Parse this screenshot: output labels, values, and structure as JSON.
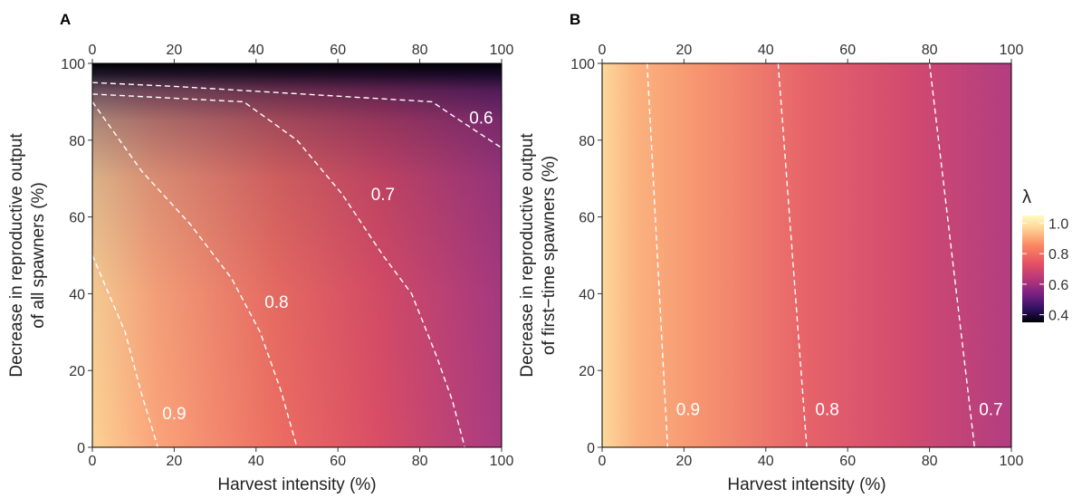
{
  "chart_data": [
    {
      "type": "heatmap",
      "panel_label": "A",
      "xlabel": "Harvest intensity (%)",
      "ylabel_lines": [
        "Decrease in reproductive output",
        "of all spawners (%)"
      ],
      "xlim": [
        0,
        100
      ],
      "ylim": [
        0,
        100
      ],
      "x_ticks": [
        0,
        20,
        40,
        60,
        80,
        100
      ],
      "y_ticks": [
        0,
        20,
        40,
        60,
        80,
        100
      ],
      "top_axis_ticks": [
        0,
        20,
        40,
        60,
        80,
        100
      ],
      "contours": [
        {
          "level": "0.9",
          "points": [
            [
              0,
              50
            ],
            [
              4,
              40
            ],
            [
              8,
              30
            ],
            [
              12,
              14
            ],
            [
              16,
              0
            ]
          ],
          "label_at": [
            20,
            9
          ]
        },
        {
          "level": "0.8",
          "points": [
            [
              0,
              90
            ],
            [
              12,
              72
            ],
            [
              24,
              58
            ],
            [
              34,
              44
            ],
            [
              41,
              30
            ],
            [
              46,
              15
            ],
            [
              50,
              0
            ]
          ],
          "label_at": [
            45,
            38
          ]
        },
        {
          "level": "0.7",
          "points": [
            [
              0,
              92
            ],
            [
              37,
              90
            ],
            [
              50,
              80
            ],
            [
              61,
              66
            ],
            [
              71,
              50
            ],
            [
              78,
              40
            ],
            [
              84,
              24
            ],
            [
              88,
              12
            ],
            [
              91,
              0
            ]
          ],
          "label_at": [
            71,
            66
          ]
        },
        {
          "level": "0.6",
          "points": [
            [
              0,
              95
            ],
            [
              20,
              94
            ],
            [
              83,
              90
            ],
            [
              90,
              85
            ],
            [
              100,
              78
            ]
          ],
          "label_at": [
            95,
            86
          ]
        }
      ]
    },
    {
      "type": "heatmap",
      "panel_label": "B",
      "xlabel": "Harvest intensity (%)",
      "ylabel_lines": [
        "Decrease in reproductive output",
        "of first−time spawners (%)"
      ],
      "xlim": [
        0,
        100
      ],
      "ylim": [
        0,
        100
      ],
      "x_ticks": [
        0,
        20,
        40,
        60,
        80,
        100
      ],
      "y_ticks": [
        0,
        20,
        40,
        60,
        80,
        100
      ],
      "top_axis_ticks": [
        0,
        20,
        40,
        60,
        80,
        100
      ],
      "contours": [
        {
          "level": "0.9",
          "points": [
            [
              11,
              100
            ],
            [
              16,
              0
            ]
          ],
          "label_at": [
            21,
            10
          ]
        },
        {
          "level": "0.8",
          "points": [
            [
              43,
              100
            ],
            [
              50,
              0
            ]
          ],
          "label_at": [
            55,
            10
          ]
        },
        {
          "level": "0.7",
          "points": [
            [
              80,
              100
            ],
            [
              91,
              0
            ]
          ],
          "label_at": [
            95,
            10
          ]
        }
      ]
    }
  ],
  "legend": {
    "title": "λ",
    "ticks": [
      "1.0",
      "0.8",
      "0.6",
      "0.4"
    ],
    "tick_values": [
      1.0,
      0.8,
      0.6,
      0.4
    ],
    "range": [
      0.35,
      1.05
    ]
  }
}
